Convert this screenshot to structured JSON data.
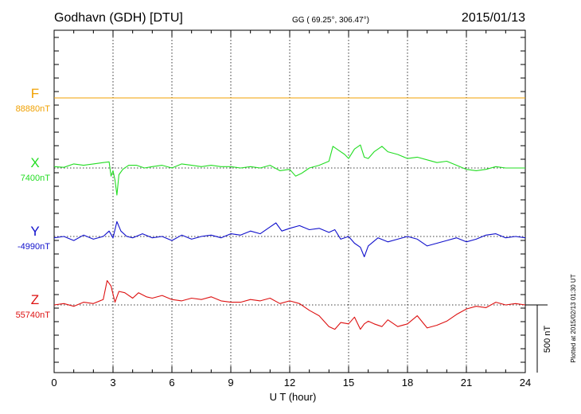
{
  "header": {
    "station": "Godhavn (GDH)  [DTU]",
    "coords": "GG ( 69.25°, 306.47°)",
    "date": "2015/01/13"
  },
  "footer": {
    "plotted": "Plotted at 2015/02/13 01:30 UT"
  },
  "chart_data": {
    "type": "line",
    "xlabel": "U T (hour)",
    "xlim": [
      0,
      24
    ],
    "xticks": [
      "0",
      "3",
      "6",
      "9",
      "12",
      "15",
      "18",
      "21",
      "24"
    ],
    "scale_bar": {
      "label": "500 nT",
      "value_nT": 500
    },
    "colors": {
      "F": "#f0a000",
      "X": "#22dd22",
      "Y": "#1010cc",
      "Z": "#dd1111"
    },
    "series": [
      {
        "name": "F",
        "baseline_label": "88880nT",
        "baseline_nT": 88880,
        "x": [
          0,
          24
        ],
        "y": [
          88880,
          88880
        ]
      },
      {
        "name": "X",
        "baseline_label": "7400nT",
        "baseline_nT": 7400,
        "x": [
          0,
          0.5,
          1,
          1.5,
          2,
          2.5,
          2.8,
          2.9,
          3.0,
          3.1,
          3.2,
          3.3,
          3.5,
          3.8,
          4.2,
          4.6,
          5.0,
          5.5,
          6,
          6.5,
          7,
          7.5,
          8,
          8.5,
          9,
          9.5,
          10,
          10.5,
          11,
          11.5,
          12,
          12.3,
          12.6,
          13,
          13.5,
          14,
          14.2,
          14.5,
          14.8,
          15,
          15.3,
          15.6,
          15.8,
          16,
          16.3,
          16.7,
          17,
          17.5,
          18,
          18.5,
          19,
          19.5,
          20,
          20.5,
          21,
          21.5,
          22,
          22.5,
          23,
          23.5,
          24
        ],
        "y": [
          7410,
          7405,
          7430,
          7420,
          7430,
          7440,
          7445,
          7340,
          7380,
          7310,
          7200,
          7350,
          7390,
          7420,
          7420,
          7400,
          7410,
          7420,
          7400,
          7430,
          7420,
          7410,
          7420,
          7410,
          7410,
          7400,
          7410,
          7400,
          7420,
          7380,
          7390,
          7340,
          7360,
          7400,
          7420,
          7450,
          7560,
          7530,
          7500,
          7470,
          7540,
          7570,
          7480,
          7470,
          7520,
          7560,
          7520,
          7500,
          7470,
          7480,
          7460,
          7440,
          7450,
          7420,
          7390,
          7380,
          7390,
          7410,
          7400,
          7400,
          7400
        ]
      },
      {
        "name": "Y",
        "baseline_label": "-4990nT",
        "baseline_nT": -4990,
        "x": [
          0,
          0.5,
          1,
          1.5,
          2,
          2.5,
          2.8,
          3.0,
          3.2,
          3.4,
          3.7,
          4.0,
          4.5,
          5,
          5.5,
          6,
          6.5,
          7,
          7.5,
          8,
          8.5,
          9,
          9.5,
          10,
          10.5,
          11,
          11.3,
          11.6,
          12,
          12.5,
          13,
          13.5,
          14,
          14.3,
          14.6,
          15,
          15.3,
          15.6,
          15.8,
          16,
          16.5,
          17,
          17.5,
          18,
          18.5,
          19,
          19.5,
          20,
          20.5,
          21,
          21.5,
          22,
          22.5,
          23,
          23.5,
          24
        ],
        "y": [
          -5000,
          -4990,
          -5020,
          -4980,
          -5010,
          -4990,
          -4950,
          -5000,
          -4880,
          -4950,
          -4990,
          -5000,
          -4970,
          -5000,
          -4990,
          -5020,
          -4980,
          -5010,
          -4990,
          -4980,
          -5000,
          -4970,
          -4980,
          -4950,
          -4970,
          -4920,
          -4890,
          -4950,
          -4930,
          -4910,
          -4940,
          -4930,
          -4960,
          -4940,
          -5010,
          -4990,
          -5040,
          -5070,
          -5140,
          -5060,
          -5000,
          -5030,
          -5010,
          -4990,
          -5010,
          -5060,
          -5040,
          -5020,
          -5000,
          -5030,
          -5010,
          -4980,
          -4970,
          -5000,
          -4990,
          -5000
        ]
      },
      {
        "name": "Z",
        "baseline_label": "55740nT",
        "baseline_nT": 55740,
        "x": [
          0,
          0.5,
          1,
          1.5,
          2,
          2.5,
          2.7,
          2.9,
          3.1,
          3.3,
          3.6,
          4.0,
          4.3,
          4.7,
          5,
          5.5,
          6,
          6.5,
          7,
          7.5,
          8,
          8.5,
          9,
          9.5,
          10,
          10.5,
          11,
          11.5,
          12,
          12.5,
          13,
          13.5,
          14,
          14.3,
          14.6,
          15,
          15.3,
          15.6,
          15.8,
          16,
          16.3,
          16.7,
          17,
          17.5,
          18,
          18.5,
          19,
          19.5,
          20,
          20.5,
          21,
          21.5,
          22,
          22.5,
          23,
          23.5,
          24
        ],
        "y": [
          55740,
          55750,
          55730,
          55760,
          55750,
          55780,
          55920,
          55880,
          55760,
          55840,
          55830,
          55790,
          55830,
          55800,
          55790,
          55810,
          55780,
          55770,
          55790,
          55780,
          55800,
          55770,
          55760,
          55760,
          55780,
          55770,
          55790,
          55750,
          55770,
          55750,
          55700,
          55660,
          55580,
          55560,
          55610,
          55600,
          55650,
          55560,
          55600,
          55620,
          55600,
          55580,
          55630,
          55580,
          55600,
          55660,
          55570,
          55590,
          55620,
          55670,
          55710,
          55730,
          55720,
          55760,
          55740,
          55750,
          55740
        ]
      }
    ]
  }
}
